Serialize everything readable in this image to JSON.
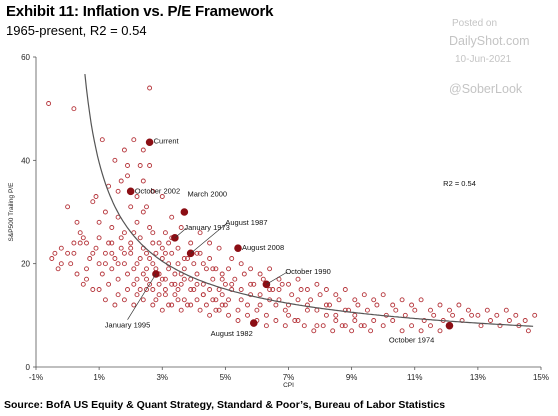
{
  "header": {
    "title": "Exhibit 11: Inflation vs. P/E Framework",
    "subtitle": "1965-present, R2 = 0.54"
  },
  "watermark": {
    "posted": "Posted on",
    "site": "DailyShot.com",
    "date": "10-Jun-2021",
    "handle": "@SoberLook"
  },
  "source": "Source: BofA US Equity & Quant Strategy, Standard & Poor’s, Bureau of Labor Statistics",
  "chart_data": {
    "type": "scatter",
    "xlabel": "CPI",
    "ylabel": "S&P500 Trailing P/E",
    "xlim": [
      -1,
      15
    ],
    "ylim": [
      0,
      60
    ],
    "x_ticks": [
      -1,
      1,
      3,
      5,
      7,
      9,
      11,
      13,
      15
    ],
    "x_tick_labels": [
      "-1%",
      "1%",
      "3%",
      "5%",
      "7%",
      "9%",
      "11%",
      "13%",
      "15%"
    ],
    "y_ticks": [
      0,
      20,
      40,
      60
    ],
    "y_tick_labels": [
      "0",
      "20",
      "40",
      "60"
    ],
    "grid": false,
    "legend": "none",
    "colors": {
      "points": "#b5343a",
      "highlight": "#8b0e14",
      "fit": "#555555"
    },
    "r2_label": "R2 = 0.54",
    "fit_curve": {
      "form": "y = a / x^b",
      "a": 39.6,
      "b": 0.6
    },
    "highlights": [
      {
        "label": "Current",
        "x": 2.6,
        "y": 43.5
      },
      {
        "label": "October 2002",
        "x": 2.0,
        "y": 34
      },
      {
        "label": "March 2000",
        "x": 3.7,
        "y": 30
      },
      {
        "label": "January 1973",
        "x": 3.4,
        "y": 25
      },
      {
        "label": "August 1987",
        "x": 3.9,
        "y": 22
      },
      {
        "label": "August 2008",
        "x": 5.4,
        "y": 23
      },
      {
        "label": "October 1990",
        "x": 6.3,
        "y": 16
      },
      {
        "label": "January 1995",
        "x": 2.8,
        "y": 18
      },
      {
        "label": "August 1982",
        "x": 5.9,
        "y": 8.5
      },
      {
        "label": "October 1974",
        "x": 12.1,
        "y": 8
      }
    ],
    "points": [
      [
        0.0,
        31
      ],
      [
        0.3,
        28
      ],
      [
        0.5,
        25
      ],
      [
        0.8,
        32
      ],
      [
        1.0,
        28
      ],
      [
        1.2,
        30
      ],
      [
        1.4,
        27
      ],
      [
        1.6,
        29
      ],
      [
        1.8,
        26
      ],
      [
        2.0,
        31
      ],
      [
        2.2,
        28
      ],
      [
        2.4,
        30
      ],
      [
        1.3,
        35
      ],
      [
        1.6,
        34
      ],
      [
        1.9,
        37
      ],
      [
        2.2,
        33
      ],
      [
        2.4,
        36
      ],
      [
        2.7,
        34
      ],
      [
        1.5,
        40
      ],
      [
        1.8,
        42
      ],
      [
        2.1,
        44
      ],
      [
        2.3,
        39
      ],
      [
        1.1,
        44
      ],
      [
        2.6,
        39
      ],
      [
        -0.5,
        21
      ],
      [
        -0.3,
        19
      ],
      [
        -0.2,
        23
      ],
      [
        0.1,
        20
      ],
      [
        0.2,
        22
      ],
      [
        0.4,
        24
      ],
      [
        0.6,
        19
      ],
      [
        0.7,
        21
      ],
      [
        0.9,
        23
      ],
      [
        1.0,
        20
      ],
      [
        1.1,
        18
      ],
      [
        1.2,
        22
      ],
      [
        1.3,
        24
      ],
      [
        1.4,
        19
      ],
      [
        1.5,
        21
      ],
      [
        1.6,
        17
      ],
      [
        1.7,
        23
      ],
      [
        1.8,
        20
      ],
      [
        1.9,
        18
      ],
      [
        2.0,
        22
      ],
      [
        2.1,
        19
      ],
      [
        2.2,
        17
      ],
      [
        2.3,
        21
      ],
      [
        2.4,
        23
      ],
      [
        2.5,
        19
      ],
      [
        2.6,
        16
      ],
      [
        2.7,
        20
      ],
      [
        2.8,
        22
      ],
      [
        2.9,
        18
      ],
      [
        3.0,
        21
      ],
      [
        3.1,
        17
      ],
      [
        3.2,
        19
      ],
      [
        3.3,
        22
      ],
      [
        3.4,
        18
      ],
      [
        3.5,
        20
      ],
      [
        3.6,
        16
      ],
      [
        3.7,
        19
      ],
      [
        3.8,
        21
      ],
      [
        3.9,
        17
      ],
      [
        4.0,
        20
      ],
      [
        4.1,
        18
      ],
      [
        4.2,
        22
      ],
      [
        4.3,
        16
      ],
      [
        4.4,
        19
      ],
      [
        4.5,
        21
      ],
      [
        4.6,
        17
      ],
      [
        4.7,
        19
      ],
      [
        4.8,
        15
      ],
      [
        4.9,
        18
      ],
      [
        5.0,
        16
      ],
      [
        1.0,
        15
      ],
      [
        1.3,
        16
      ],
      [
        1.6,
        14
      ],
      [
        1.9,
        15
      ],
      [
        2.2,
        14
      ],
      [
        2.5,
        15
      ],
      [
        2.8,
        13
      ],
      [
        3.1,
        15
      ],
      [
        3.4,
        14
      ],
      [
        3.7,
        13
      ],
      [
        4.0,
        15
      ],
      [
        4.3,
        14
      ],
      [
        4.6,
        13
      ],
      [
        4.9,
        14
      ],
      [
        5.2,
        15
      ],
      [
        5.5,
        13
      ],
      [
        5.8,
        14
      ],
      [
        6.1,
        12
      ],
      [
        6.4,
        13
      ],
      [
        6.7,
        15
      ],
      [
        0.5,
        16
      ],
      [
        0.8,
        15
      ],
      [
        5.1,
        19
      ],
      [
        5.3,
        17
      ],
      [
        5.6,
        18
      ],
      [
        5.9,
        16
      ],
      [
        6.2,
        17
      ],
      [
        6.5,
        15
      ],
      [
        6.8,
        16
      ],
      [
        7.1,
        14
      ],
      [
        7.4,
        15
      ],
      [
        7.7,
        13
      ],
      [
        8.0,
        14
      ],
      [
        8.3,
        12
      ],
      [
        8.6,
        13
      ],
      [
        8.9,
        11
      ],
      [
        9.2,
        12
      ],
      [
        9.5,
        11
      ],
      [
        9.8,
        12
      ],
      [
        10.1,
        10
      ],
      [
        10.4,
        11
      ],
      [
        10.7,
        10
      ],
      [
        11.0,
        11
      ],
      [
        11.3,
        9
      ],
      [
        11.6,
        10
      ],
      [
        11.9,
        9
      ],
      [
        12.2,
        10
      ],
      [
        12.5,
        9
      ],
      [
        12.8,
        10
      ],
      [
        13.1,
        8
      ],
      [
        13.4,
        9
      ],
      [
        13.7,
        8
      ],
      [
        14.0,
        9
      ],
      [
        14.3,
        8
      ],
      [
        14.6,
        7
      ],
      [
        7.0,
        10
      ],
      [
        7.3,
        9
      ],
      [
        7.6,
        11
      ],
      [
        7.9,
        8
      ],
      [
        8.2,
        10
      ],
      [
        8.5,
        9
      ],
      [
        8.8,
        8
      ],
      [
        9.1,
        10
      ],
      [
        9.4,
        8
      ],
      [
        9.7,
        9
      ],
      [
        10.0,
        8
      ],
      [
        10.3,
        9
      ],
      [
        10.6,
        7
      ],
      [
        10.9,
        8
      ],
      [
        11.2,
        7
      ],
      [
        11.5,
        8
      ],
      [
        11.8,
        7
      ],
      [
        12.1,
        8
      ],
      [
        6.0,
        11
      ],
      [
        6.3,
        10
      ],
      [
        6.6,
        12
      ],
      [
        6.9,
        11
      ],
      [
        5.4,
        11
      ],
      [
        5.7,
        12
      ],
      [
        5.0,
        12
      ],
      [
        4.7,
        11
      ],
      [
        4.4,
        12
      ],
      [
        4.1,
        13
      ],
      [
        3.8,
        12
      ],
      [
        3.5,
        13
      ],
      [
        3.2,
        12
      ],
      [
        2.9,
        14
      ],
      [
        -0.6,
        51
      ],
      [
        0.2,
        50
      ],
      [
        2.6,
        54
      ],
      [
        1.9,
        39
      ],
      [
        2.4,
        42
      ],
      [
        3.0,
        33
      ],
      [
        3.3,
        29
      ],
      [
        3.6,
        27
      ],
      [
        2.1,
        26
      ],
      [
        1.7,
        25
      ],
      [
        1.4,
        24
      ],
      [
        2.7,
        24
      ],
      [
        3.0,
        23
      ],
      [
        2.6,
        27
      ],
      [
        3.1,
        26
      ],
      [
        0.9,
        33
      ],
      [
        1.7,
        36
      ],
      [
        2.5,
        31
      ],
      [
        2.0,
        23
      ],
      [
        3.2,
        24
      ],
      [
        4.2,
        26
      ],
      [
        4.5,
        24
      ],
      [
        4.8,
        23
      ],
      [
        5.2,
        21
      ],
      [
        5.5,
        20
      ],
      [
        5.8,
        19
      ],
      [
        6.1,
        18
      ],
      [
        6.4,
        19
      ],
      [
        6.7,
        17
      ],
      [
        7.0,
        16
      ],
      [
        7.3,
        17
      ],
      [
        7.6,
        15
      ],
      [
        7.9,
        16
      ],
      [
        8.2,
        15
      ],
      [
        8.5,
        14
      ],
      [
        8.8,
        15
      ],
      [
        9.1,
        13
      ],
      [
        9.4,
        14
      ],
      [
        9.7,
        13
      ],
      [
        10.0,
        14
      ],
      [
        10.3,
        12
      ],
      [
        10.6,
        13
      ],
      [
        10.9,
        12
      ],
      [
        11.2,
        13
      ],
      [
        11.5,
        11
      ],
      [
        11.8,
        12
      ],
      [
        12.1,
        11
      ],
      [
        12.4,
        12
      ],
      [
        12.7,
        11
      ],
      [
        13.0,
        10
      ],
      [
        13.3,
        11
      ],
      [
        13.6,
        10
      ],
      [
        13.9,
        11
      ],
      [
        14.2,
        10
      ],
      [
        14.5,
        9
      ],
      [
        14.8,
        10
      ],
      [
        0.3,
        18
      ],
      [
        0.6,
        17
      ],
      [
        1.2,
        13
      ],
      [
        1.5,
        12
      ],
      [
        1.8,
        13
      ],
      [
        2.1,
        12
      ],
      [
        2.4,
        13
      ],
      [
        2.7,
        12
      ],
      [
        3.0,
        11
      ],
      [
        3.3,
        12
      ],
      [
        3.6,
        11
      ],
      [
        3.9,
        12
      ],
      [
        4.2,
        11
      ],
      [
        4.5,
        10
      ],
      [
        4.8,
        11
      ],
      [
        5.1,
        10
      ],
      [
        5.4,
        9
      ],
      [
        5.7,
        10
      ],
      [
        6.0,
        9
      ],
      [
        6.3,
        8
      ],
      [
        6.6,
        9
      ],
      [
        6.9,
        8
      ],
      [
        7.2,
        9
      ],
      [
        7.5,
        8
      ],
      [
        7.8,
        7
      ],
      [
        8.1,
        8
      ],
      [
        8.4,
        7
      ],
      [
        8.7,
        8
      ],
      [
        9.0,
        7
      ],
      [
        9.3,
        8
      ],
      [
        9.6,
        7
      ],
      [
        2.2,
        20
      ],
      [
        2.4,
        18
      ],
      [
        2.6,
        21
      ],
      [
        2.8,
        19
      ],
      [
        3.0,
        17
      ],
      [
        3.2,
        20
      ],
      [
        3.4,
        16
      ],
      [
        3.6,
        18
      ],
      [
        2.3,
        25
      ],
      [
        2.5,
        22
      ],
      [
        2.7,
        26
      ],
      [
        2.9,
        24
      ],
      [
        3.1,
        22
      ],
      [
        3.3,
        25
      ],
      [
        3.5,
        23
      ],
      [
        3.7,
        21
      ],
      [
        1.6,
        20
      ],
      [
        1.8,
        22
      ],
      [
        2.0,
        24
      ],
      [
        1.4,
        22
      ],
      [
        1.2,
        20
      ],
      [
        1.0,
        25
      ],
      [
        0.8,
        22
      ],
      [
        0.6,
        24
      ],
      [
        0.4,
        26
      ],
      [
        0.2,
        24
      ],
      [
        0.0,
        22
      ],
      [
        -0.2,
        20
      ],
      [
        -0.4,
        22
      ],
      [
        3.9,
        24
      ],
      [
        4.1,
        22
      ],
      [
        4.3,
        20
      ],
      [
        4.6,
        19
      ],
      [
        4.9,
        17
      ],
      [
        5.2,
        16
      ],
      [
        5.5,
        15
      ],
      [
        5.8,
        16
      ],
      [
        6.1,
        14
      ],
      [
        6.4,
        15
      ],
      [
        6.7,
        13
      ],
      [
        7.0,
        12
      ],
      [
        7.3,
        13
      ],
      [
        7.6,
        12
      ],
      [
        7.9,
        11
      ],
      [
        8.2,
        12
      ],
      [
        8.5,
        10
      ],
      [
        8.8,
        11
      ],
      [
        9.1,
        9
      ],
      [
        2.1,
        16
      ],
      [
        2.3,
        15
      ],
      [
        2.5,
        17
      ],
      [
        2.7,
        15
      ],
      [
        2.9,
        16
      ],
      [
        3.1,
        14
      ],
      [
        3.3,
        16
      ],
      [
        3.5,
        15
      ],
      [
        3.7,
        17
      ],
      [
        3.9,
        15
      ],
      [
        4.1,
        16
      ],
      [
        4.3,
        14
      ],
      [
        4.5,
        15
      ],
      [
        4.7,
        13
      ],
      [
        4.9,
        12
      ],
      [
        5.1,
        13
      ]
    ]
  }
}
